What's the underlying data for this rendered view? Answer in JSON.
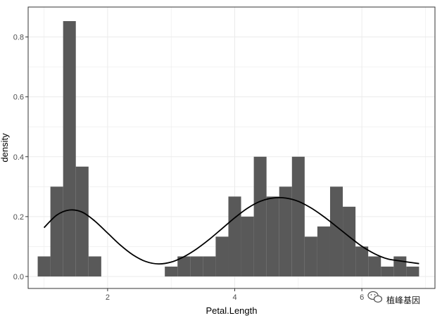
{
  "chart_data": {
    "type": "bar",
    "subtype": "histogram-with-density",
    "xlabel": "Petal.Length",
    "ylabel": "density",
    "xlim": [
      0.75,
      7.15
    ],
    "ylim": [
      -0.04,
      0.9
    ],
    "x_ticks": [
      2,
      4,
      6
    ],
    "y_ticks": [
      0.0,
      0.2,
      0.4,
      0.6,
      0.8
    ],
    "y_tick_labels": [
      "0.0",
      "0.2",
      "0.4",
      "0.6",
      "0.8"
    ],
    "grid": true,
    "legend": "none",
    "bin_width": 0.2,
    "bin_starts": [
      0.9,
      1.1,
      1.3,
      1.5,
      1.7,
      2.9,
      3.1,
      3.3,
      3.5,
      3.7,
      3.9,
      4.1,
      4.3,
      4.5,
      4.7,
      4.9,
      5.1,
      5.3,
      5.5,
      5.7,
      5.9,
      6.1,
      6.3,
      6.5,
      6.7
    ],
    "values": [
      0.067,
      0.3,
      0.853,
      0.367,
      0.067,
      0.033,
      0.067,
      0.067,
      0.067,
      0.133,
      0.267,
      0.2,
      0.4,
      0.267,
      0.3,
      0.4,
      0.133,
      0.167,
      0.3,
      0.233,
      0.1,
      0.067,
      0.033,
      0.067,
      0.033
    ],
    "density_curve": {
      "x": [
        1.0,
        1.2,
        1.4,
        1.6,
        1.8,
        2.0,
        2.2,
        2.4,
        2.6,
        2.8,
        3.0,
        3.2,
        3.4,
        3.6,
        3.8,
        4.0,
        4.2,
        4.4,
        4.6,
        4.8,
        5.0,
        5.2,
        5.4,
        5.6,
        5.8,
        6.0,
        6.2,
        6.4,
        6.6,
        6.9
      ],
      "y": [
        0.163,
        0.205,
        0.222,
        0.215,
        0.185,
        0.145,
        0.105,
        0.072,
        0.05,
        0.042,
        0.048,
        0.066,
        0.092,
        0.124,
        0.16,
        0.196,
        0.228,
        0.251,
        0.262,
        0.262,
        0.251,
        0.229,
        0.2,
        0.167,
        0.133,
        0.101,
        0.076,
        0.059,
        0.052,
        0.043
      ]
    },
    "colors": {
      "bar": "#595959",
      "curve": "#000000",
      "grid": "#ebebeb",
      "panel_border": "#333333"
    }
  },
  "watermark": {
    "text": "植峰基因",
    "icon": "wechat-icon"
  }
}
